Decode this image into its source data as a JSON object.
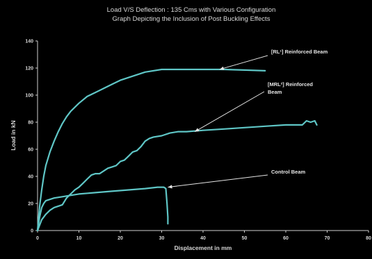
{
  "chart_data": {
    "type": "line",
    "title": "Load V/S Deflection : 135 Cms with Various Configuration",
    "subtitle": "Graph Depicting the Inclusion of Post Buckling Effects",
    "xlabel": "Displacement in mm",
    "ylabel": "Load in kN",
    "xlim": [
      0,
      80
    ],
    "ylim": [
      0,
      140
    ],
    "xticks": [
      0,
      10,
      20,
      30,
      40,
      50,
      60,
      70,
      80
    ],
    "yticks": [
      0,
      20,
      40,
      60,
      80,
      100,
      120,
      140
    ],
    "grid": false,
    "legend": "none",
    "line_color": "#5fc6c6",
    "series": [
      {
        "x": [
          0,
          0.5,
          1,
          1.5,
          2,
          3,
          4,
          5,
          6,
          7,
          8,
          10,
          12,
          14,
          16,
          18,
          20,
          23,
          26,
          30,
          35,
          40,
          45,
          50,
          55
        ],
        "y": [
          0,
          18,
          30,
          40,
          48,
          58,
          66,
          73,
          79,
          84,
          88,
          94,
          99,
          102,
          105,
          108,
          111,
          114,
          117,
          119,
          119,
          119,
          119,
          118.5,
          118
        ]
      },
      {
        "x": [
          0,
          1,
          2,
          3,
          4,
          5,
          6,
          7,
          8,
          9,
          10,
          11,
          12,
          13,
          14,
          15,
          16,
          17,
          18,
          19,
          20,
          21,
          22,
          23,
          24,
          25,
          26,
          27,
          28,
          30,
          32,
          34,
          36,
          40,
          45,
          50,
          55,
          60,
          64,
          65,
          66,
          67,
          67.5
        ],
        "y": [
          0,
          8,
          12,
          15,
          17,
          18,
          19,
          24,
          27,
          30,
          32,
          35,
          38,
          41,
          42,
          42,
          44,
          46,
          47,
          48,
          51,
          52,
          55,
          58,
          59,
          62,
          66,
          68,
          69,
          70,
          72,
          73,
          73,
          74,
          75,
          76,
          77,
          78,
          78,
          81,
          80,
          81,
          78
        ]
      },
      {
        "x": [
          0,
          0.5,
          1,
          1.5,
          2,
          4,
          6,
          8,
          10,
          14,
          18,
          22,
          26,
          29,
          30.5,
          31,
          31.3,
          31.5,
          31.5
        ],
        "y": [
          0,
          10,
          17,
          20,
          22,
          24,
          25,
          26,
          27,
          28,
          29,
          30,
          31,
          32,
          32,
          31,
          20,
          10,
          5
        ]
      }
    ],
    "annotations": [
      {
        "lines": [
          "[RL¹] Reinforced Beam"
        ],
        "target_x": 44,
        "target_y": 119
      },
      {
        "lines": [
          "[MRL²] Reinforced",
          "Beam"
        ],
        "target_x": 38,
        "target_y": 73
      },
      {
        "lines": [
          "Control Beam"
        ],
        "target_x": 31.5,
        "target_y": 32
      }
    ]
  }
}
